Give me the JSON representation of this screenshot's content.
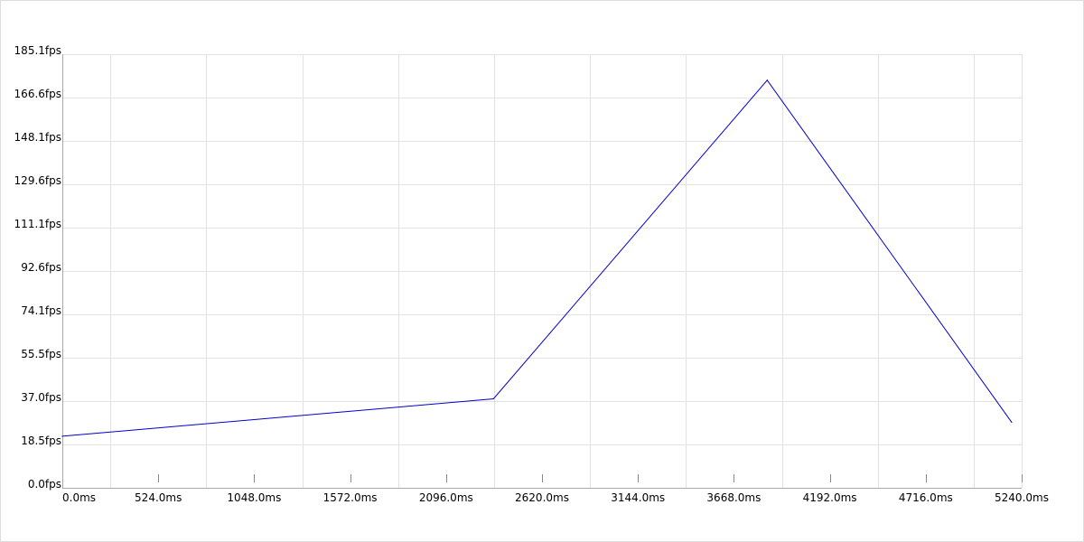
{
  "chart_data": {
    "type": "line",
    "title": "",
    "xlabel": "",
    "ylabel": "",
    "xlim": [
      0,
      5240
    ],
    "ylim": [
      0,
      185.1
    ],
    "x_ticks": [
      0,
      524,
      1048,
      1572,
      2096,
      2620,
      3144,
      3668,
      4192,
      4716,
      5240
    ],
    "x_tick_labels": [
      "0.0ms",
      "524.0ms",
      "1048.0ms",
      "1572.0ms",
      "2096.0ms",
      "2620.0ms",
      "3144.0ms",
      "3668.0ms",
      "4192.0ms",
      "4716.0ms",
      "5240.0ms"
    ],
    "y_ticks": [
      0,
      18.5,
      37.0,
      55.5,
      74.1,
      92.6,
      111.1,
      129.6,
      148.1,
      166.6,
      185.1
    ],
    "y_tick_labels": [
      "0.0fps",
      "18.5fps",
      "37.0fps",
      "55.5fps",
      "74.1fps",
      "92.6fps",
      "111.1fps",
      "129.6fps",
      "148.1fps",
      "166.6fps",
      "185.1fps"
    ],
    "grid": true,
    "series": [
      {
        "color": "#0000cc",
        "x": [
          0,
          2355,
          3850,
          5185
        ],
        "y": [
          22,
          38,
          174,
          28
        ]
      }
    ]
  }
}
